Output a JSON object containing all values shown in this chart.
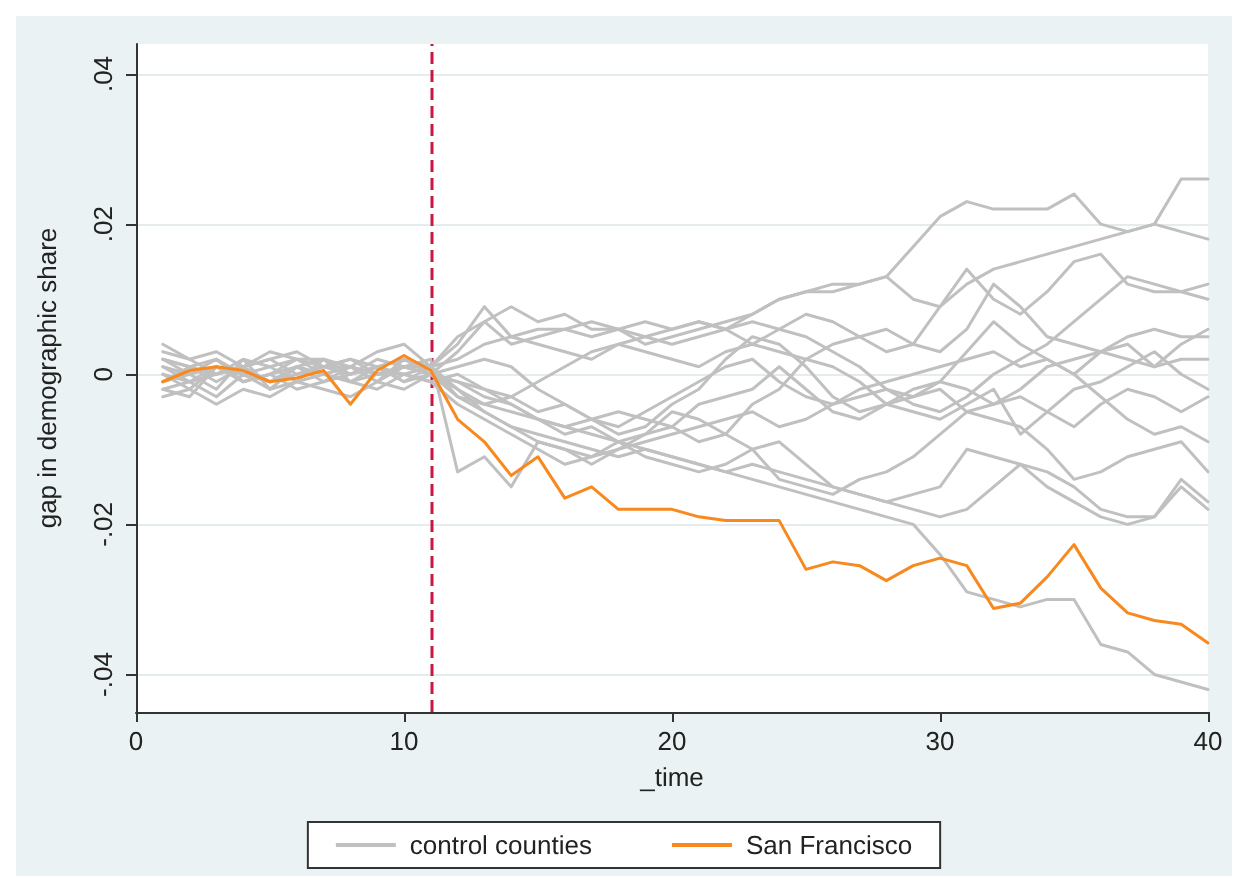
{
  "chart_data": {
    "type": "line",
    "xlabel": "_time",
    "ylabel": "gap in demographic share",
    "x": [
      1,
      2,
      3,
      4,
      5,
      6,
      7,
      8,
      9,
      10,
      11,
      12,
      13,
      14,
      15,
      16,
      17,
      18,
      19,
      20,
      21,
      22,
      23,
      24,
      25,
      26,
      27,
      28,
      29,
      30,
      31,
      32,
      33,
      34,
      35,
      36,
      37,
      38,
      39,
      40
    ],
    "xlim": [
      0,
      40
    ],
    "xticks": [
      0,
      10,
      20,
      30,
      40
    ],
    "ylim": [
      -0.045,
      0.044
    ],
    "yticks": [
      {
        "value": -0.04,
        "label": "-.04"
      },
      {
        "value": -0.02,
        "label": "-.02"
      },
      {
        "value": 0,
        "label": "0"
      },
      {
        "value": 0.02,
        "label": ".02"
      },
      {
        "value": 0.04,
        "label": ".04"
      }
    ],
    "grid": "y",
    "legend": "bottom",
    "marker": "none",
    "line_style": "solid",
    "ref_lines": [
      {
        "axis": "x",
        "value": 11,
        "color": "#c8163f",
        "line_style": "dashed"
      }
    ],
    "series": [
      {
        "name": "control counties",
        "color": "#c0c0c0",
        "values": [
          0.002,
          0.001,
          0.002,
          0,
          0.001,
          0.002,
          0.001,
          0,
          0.001,
          0,
          0.001,
          0.002,
          0.004,
          0.005,
          0.006,
          0.006,
          0.007,
          0.006,
          0.007,
          0.006,
          0.007,
          0.006,
          0.008,
          0.01,
          0.011,
          0.012,
          0.012,
          0.013,
          0.017,
          0.021,
          0.023,
          0.022,
          0.022,
          0.022,
          0.024,
          0.02,
          0.019,
          0.02,
          0.026,
          0.026
        ]
      },
      {
        "color": "#c0c0c0",
        "values": [
          -0.001,
          0,
          0.001,
          0,
          -0.001,
          0.001,
          0,
          0.001,
          0,
          0.001,
          0,
          0.003,
          0.007,
          0.004,
          0.005,
          0.006,
          0.005,
          0.006,
          0.004,
          0.005,
          0.006,
          0.007,
          0.008,
          0.01,
          0.011,
          0.011,
          0.012,
          0.013,
          0.01,
          0.009,
          0.012,
          0.014,
          0.015,
          0.016,
          0.017,
          0.018,
          0.019,
          0.02,
          0.019,
          0.018
        ]
      },
      {
        "color": "#c0c0c0",
        "values": [
          0.003,
          0.002,
          0,
          0.001,
          0.002,
          0.003,
          0.001,
          0.002,
          0.001,
          0.002,
          0.001,
          0.004,
          0.009,
          0.005,
          0.004,
          0.003,
          0.002,
          0.004,
          0.003,
          0.002,
          0.001,
          0.003,
          0.004,
          0.006,
          0.008,
          0.007,
          0.005,
          0.003,
          0.004,
          0.009,
          0.014,
          0.01,
          0.008,
          0.011,
          0.015,
          0.016,
          0.012,
          0.011,
          0.011,
          0.012
        ]
      },
      {
        "color": "#c0c0c0",
        "values": [
          0,
          -0.002,
          0.001,
          -0.001,
          0,
          0.001,
          -0.001,
          0,
          0.001,
          -0.001,
          0,
          -0.002,
          -0.004,
          -0.003,
          -0.001,
          0.001,
          0.003,
          0.004,
          0.005,
          0.006,
          0.007,
          0.006,
          0.004,
          0.003,
          0.002,
          0.004,
          0.005,
          0.006,
          0.004,
          0.003,
          0.006,
          0.012,
          0.009,
          0.005,
          0.004,
          0.003,
          0.005,
          0.006,
          0.005,
          0.005
        ]
      },
      {
        "color": "#c0c0c0",
        "values": [
          -0.002,
          -0.001,
          -0.003,
          0,
          -0.002,
          -0.001,
          0,
          -0.001,
          -0.002,
          0,
          -0.001,
          0,
          -0.002,
          -0.003,
          -0.005,
          -0.004,
          -0.006,
          -0.007,
          -0.005,
          -0.003,
          -0.001,
          0.001,
          0.002,
          -0.001,
          -0.003,
          -0.004,
          -0.002,
          -0.001,
          0,
          0.001,
          0.002,
          0.003,
          0.001,
          0.002,
          0,
          0.003,
          0.004,
          0.001,
          0.002,
          0.002
        ]
      },
      {
        "color": "#c0c0c0",
        "values": [
          0.001,
          0,
          0.002,
          -0.001,
          0,
          0.002,
          0,
          -0.001,
          0,
          0.001,
          0,
          0.001,
          0.002,
          0.001,
          -0.002,
          -0.004,
          -0.006,
          -0.008,
          -0.007,
          -0.004,
          -0.002,
          0.002,
          0.005,
          0.004,
          0.001,
          -0.003,
          -0.005,
          -0.004,
          -0.005,
          -0.006,
          -0.004,
          -0.002,
          -0.008,
          -0.005,
          -0.002,
          -0.001,
          0.001,
          0.003,
          0,
          -0.002
        ]
      },
      {
        "color": "#c0c0c0",
        "values": [
          -0.001,
          0.001,
          0,
          0.001,
          -0.001,
          0,
          0.001,
          0.001,
          -0.001,
          0.002,
          0,
          -0.003,
          -0.004,
          -0.005,
          -0.006,
          -0.007,
          -0.006,
          -0.005,
          -0.006,
          -0.007,
          -0.004,
          -0.003,
          -0.002,
          0.001,
          -0.002,
          -0.005,
          -0.006,
          -0.004,
          -0.002,
          -0.001,
          -0.002,
          -0.004,
          -0.003,
          -0.005,
          -0.007,
          -0.004,
          -0.002,
          -0.003,
          -0.005,
          -0.003
        ]
      },
      {
        "color": "#c0c0c0",
        "values": [
          0.002,
          0.001,
          -0.001,
          0.001,
          0.002,
          0,
          0.001,
          0.002,
          0,
          0.001,
          0.001,
          -0.002,
          -0.005,
          -0.007,
          -0.009,
          -0.01,
          -0.011,
          -0.01,
          -0.009,
          -0.008,
          -0.007,
          -0.006,
          -0.005,
          -0.007,
          -0.006,
          -0.004,
          -0.003,
          -0.002,
          -0.003,
          -0.001,
          0.003,
          0.007,
          0.004,
          0.002,
          0,
          -0.003,
          -0.006,
          -0.008,
          -0.007,
          -0.009
        ]
      },
      {
        "color": "#c0c0c0",
        "values": [
          -0.002,
          -0.003,
          0.001,
          -0.001,
          0,
          -0.002,
          -0.001,
          0.001,
          0,
          0,
          -0.001,
          -0.004,
          -0.006,
          -0.008,
          -0.01,
          -0.012,
          -0.011,
          -0.009,
          -0.008,
          -0.007,
          -0.009,
          -0.008,
          -0.01,
          -0.014,
          -0.015,
          -0.016,
          -0.014,
          -0.013,
          -0.011,
          -0.008,
          -0.005,
          -0.006,
          -0.007,
          -0.01,
          -0.014,
          -0.013,
          -0.011,
          -0.01,
          -0.009,
          -0.013
        ]
      },
      {
        "color": "#c0c0c0",
        "values": [
          0.001,
          -0.001,
          0,
          0.002,
          -0.002,
          0.001,
          0.002,
          -0.001,
          0.001,
          -0.001,
          0.001,
          -0.003,
          -0.005,
          -0.007,
          -0.008,
          -0.009,
          -0.01,
          -0.011,
          -0.01,
          -0.011,
          -0.012,
          -0.013,
          -0.012,
          -0.013,
          -0.014,
          -0.015,
          -0.016,
          -0.017,
          -0.018,
          -0.019,
          -0.018,
          -0.015,
          -0.012,
          -0.013,
          -0.015,
          -0.018,
          -0.019,
          -0.019,
          -0.015,
          -0.018
        ]
      },
      {
        "color": "#c0c0c0",
        "values": [
          0,
          -0.001,
          0.001,
          0,
          -0.001,
          0.001,
          0,
          0.001,
          -0.001,
          0.001,
          0,
          -0.001,
          -0.003,
          -0.004,
          -0.006,
          -0.007,
          -0.008,
          -0.009,
          -0.01,
          -0.011,
          -0.012,
          -0.013,
          -0.014,
          -0.015,
          -0.016,
          -0.017,
          -0.018,
          -0.019,
          -0.02,
          -0.024,
          -0.029,
          -0.03,
          -0.031,
          -0.03,
          -0.03,
          -0.036,
          -0.037,
          -0.04,
          -0.041,
          -0.042
        ]
      },
      {
        "color": "#c0c0c0",
        "values": [
          0.002,
          0,
          -0.002,
          0.002,
          0.001,
          -0.001,
          0.002,
          0,
          0.002,
          0.001,
          0.002,
          -0.013,
          -0.011,
          -0.015,
          -0.009,
          -0.01,
          -0.012,
          -0.01,
          -0.008,
          -0.005,
          -0.006,
          -0.008,
          -0.004,
          -0.002,
          0.002,
          0.001,
          -0.001,
          -0.004,
          -0.003,
          -0.002,
          -0.005,
          -0.004,
          -0.002,
          0.001,
          0.002,
          0.003,
          0.002,
          0.001,
          0.004,
          0.006
        ]
      },
      {
        "color": "#c0c0c0",
        "values": [
          0.004,
          0.002,
          0.003,
          0.001,
          0.003,
          0.002,
          0.002,
          0.001,
          0.003,
          0.004,
          0.001,
          0.005,
          0.007,
          0.009,
          0.007,
          0.008,
          0.006,
          0.006,
          0.005,
          0.004,
          0.005,
          0.006,
          0.007,
          0.006,
          0.005,
          0.003,
          0.001,
          -0.002,
          -0.004,
          -0.005,
          -0.003,
          0,
          0.002,
          0.004,
          0.007,
          0.01,
          0.013,
          0.012,
          0.011,
          0.01
        ]
      },
      {
        "color": "#c0c0c0",
        "values": [
          -0.003,
          -0.002,
          -0.004,
          -0.002,
          -0.003,
          -0.001,
          -0.002,
          -0.003,
          -0.001,
          -0.002,
          0,
          -0.001,
          -0.002,
          -0.004,
          -0.006,
          -0.008,
          -0.007,
          -0.009,
          -0.011,
          -0.012,
          -0.013,
          -0.012,
          -0.01,
          -0.009,
          -0.012,
          -0.015,
          -0.016,
          -0.017,
          -0.016,
          -0.015,
          -0.01,
          -0.011,
          -0.012,
          -0.015,
          -0.017,
          -0.019,
          -0.02,
          -0.019,
          -0.014,
          -0.017
        ]
      },
      {
        "name": "San Francisco",
        "color": "#f7891f",
        "values": [
          -0.001,
          0.0005,
          0.001,
          0.0005,
          -0.001,
          -0.0005,
          0.0005,
          -0.004,
          0.0005,
          0.0025,
          0.0005,
          -0.006,
          -0.009,
          -0.0135,
          -0.011,
          -0.0165,
          -0.015,
          -0.018,
          -0.018,
          -0.018,
          -0.019,
          -0.0195,
          -0.0195,
          -0.0195,
          -0.026,
          -0.025,
          -0.0255,
          -0.0275,
          -0.0255,
          -0.0245,
          -0.0255,
          -0.0312,
          -0.0305,
          -0.027,
          -0.0227,
          -0.0285,
          -0.0318,
          -0.0328,
          -0.0333,
          -0.0358
        ]
      }
    ]
  }
}
